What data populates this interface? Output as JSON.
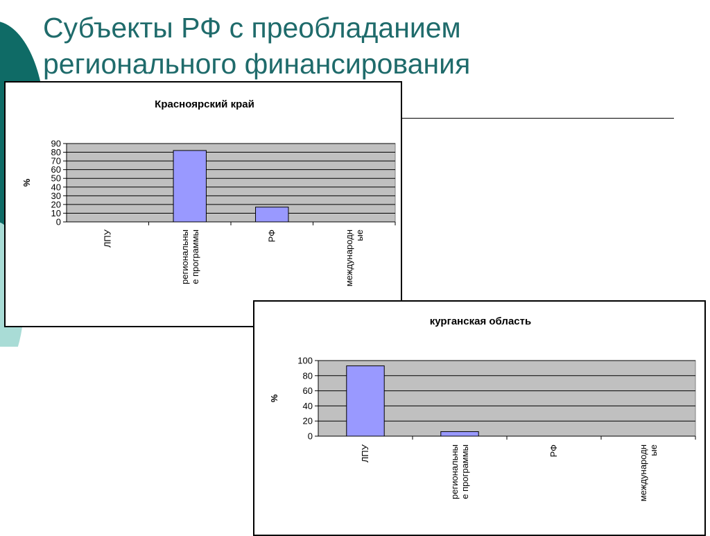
{
  "slide": {
    "title_line1": "Субъекты РФ с преобладанием",
    "title_line2": "регионального финансирования",
    "title_color": "#1f6b6b",
    "decor_colors": [
      "#0f6b66",
      "#a9dcd6"
    ]
  },
  "chart_data": [
    {
      "type": "bar",
      "title": "Красноярский край",
      "ylabel": "%",
      "xlabel": "",
      "categories": [
        "ЛПУ",
        "региональны|е программы",
        "РФ",
        "международн|ые"
      ],
      "values": [
        0,
        82,
        17,
        0
      ],
      "yticks": [
        0,
        10,
        20,
        30,
        40,
        50,
        60,
        70,
        80,
        90
      ],
      "ylim": [
        0,
        90
      ],
      "grid": true,
      "plot_bg": "#c0c0c0",
      "bar_color": "#9999ff"
    },
    {
      "type": "bar",
      "title": "курганская  область",
      "ylabel": "%",
      "xlabel": "",
      "categories": [
        "ЛПУ",
        "региональны|е программы",
        "РФ",
        "международн|ые"
      ],
      "values": [
        93,
        6,
        0,
        0
      ],
      "yticks": [
        0,
        20,
        40,
        60,
        80,
        100
      ],
      "ylim": [
        0,
        100
      ],
      "grid": true,
      "plot_bg": "#c0c0c0",
      "bar_color": "#9999ff"
    }
  ]
}
